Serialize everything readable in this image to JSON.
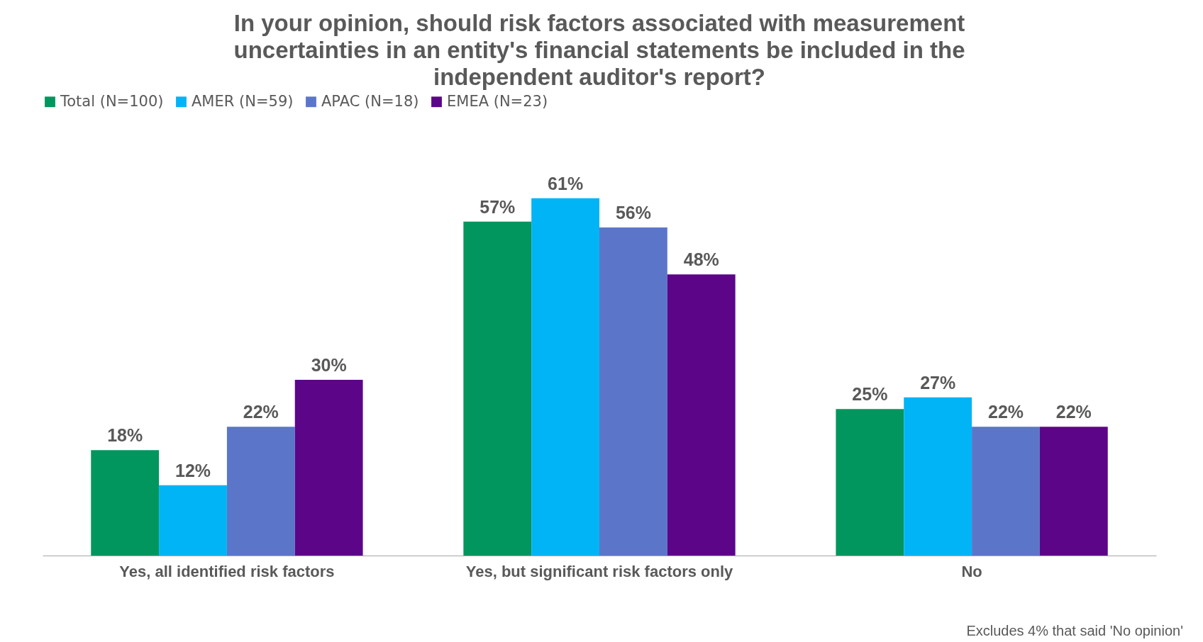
{
  "chart_data": {
    "type": "bar",
    "title": "In your opinion, should risk factors associated with measurement uncertainties in an entity's financial statements be included in the independent auditor's report?",
    "categories": [
      "Yes, all identified risk factors",
      "Yes, but significant risk factors only",
      "No"
    ],
    "series": [
      {
        "name": "Total (N=100)",
        "color": "#00965e",
        "values": [
          18,
          57,
          25
        ],
        "value_labels": [
          "18%",
          "57%",
          "25%"
        ]
      },
      {
        "name": "AMER (N=59)",
        "color": "#00b4f5",
        "values": [
          12,
          61,
          27
        ],
        "value_labels": [
          "12%",
          "61%",
          "27%"
        ]
      },
      {
        "name": "APAC (N=18)",
        "color": "#5b76c9",
        "values": [
          22,
          56,
          22
        ],
        "value_labels": [
          "22%",
          "56%",
          "22%"
        ]
      },
      {
        "name": "EMEA (N=23)",
        "color": "#5c0589",
        "values": [
          30,
          48,
          22
        ],
        "value_labels": [
          "30%",
          "48%",
          "22%"
        ]
      }
    ],
    "legend": "top",
    "annotations": [
      "Excludes 4% that said 'No opinion'"
    ]
  }
}
